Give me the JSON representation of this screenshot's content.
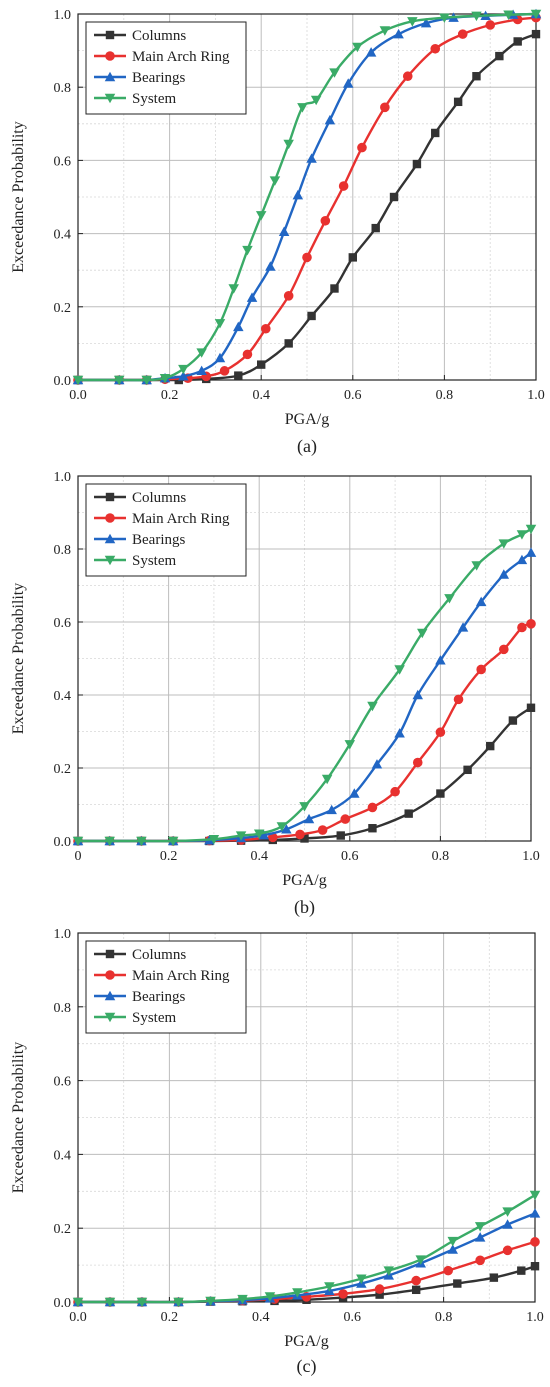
{
  "chart_data": [
    {
      "type": "line",
      "caption": "(a)",
      "xlabel": "PGA/g",
      "ylabel": "Exceedance Probability",
      "xlim": [
        0,
        1
      ],
      "ylim": [
        0,
        1
      ],
      "xticks": [
        "0.0",
        "0.2",
        "0.4",
        "0.6",
        "0.8",
        "1.0"
      ],
      "yticks": [
        "0.0",
        "0.2",
        "0.4",
        "0.6",
        "0.8",
        "1.0"
      ],
      "grid": true,
      "legend_position": "top-left",
      "series": [
        {
          "name": "Columns",
          "color": "#333333",
          "marker": "square",
          "x": [
            0,
            0.09,
            0.15,
            0.22,
            0.28,
            0.35,
            0.4,
            0.46,
            0.51,
            0.56,
            0.6,
            0.65,
            0.69,
            0.74,
            0.78,
            0.83,
            0.87,
            0.92,
            0.96,
            1.0
          ],
          "y": [
            0,
            0,
            0,
            0,
            0.003,
            0.012,
            0.042,
            0.1,
            0.175,
            0.25,
            0.335,
            0.415,
            0.5,
            0.59,
            0.675,
            0.76,
            0.83,
            0.885,
            0.925,
            0.945
          ]
        },
        {
          "name": "Main Arch Ring",
          "color": "#e8312f",
          "marker": "circle",
          "x": [
            0,
            0.09,
            0.15,
            0.19,
            0.24,
            0.28,
            0.32,
            0.37,
            0.41,
            0.46,
            0.5,
            0.54,
            0.58,
            0.62,
            0.67,
            0.72,
            0.78,
            0.84,
            0.9,
            0.96,
            1.0
          ],
          "y": [
            0,
            0,
            0,
            0.002,
            0.005,
            0.01,
            0.025,
            0.07,
            0.14,
            0.23,
            0.335,
            0.435,
            0.53,
            0.635,
            0.745,
            0.83,
            0.905,
            0.945,
            0.97,
            0.985,
            0.99
          ]
        },
        {
          "name": "Bearings",
          "color": "#2166c4",
          "marker": "triangle-up",
          "x": [
            0,
            0.09,
            0.15,
            0.19,
            0.23,
            0.27,
            0.31,
            0.35,
            0.38,
            0.42,
            0.45,
            0.48,
            0.51,
            0.55,
            0.59,
            0.64,
            0.7,
            0.76,
            0.82,
            0.89,
            0.95,
            1.0
          ],
          "y": [
            0,
            0,
            0,
            0.005,
            0.01,
            0.025,
            0.06,
            0.145,
            0.225,
            0.31,
            0.405,
            0.505,
            0.605,
            0.71,
            0.81,
            0.895,
            0.945,
            0.975,
            0.99,
            0.995,
            0.998,
            1.0
          ]
        },
        {
          "name": "System",
          "color": "#3aab67",
          "marker": "triangle-down",
          "x": [
            0,
            0.09,
            0.15,
            0.19,
            0.23,
            0.27,
            0.31,
            0.34,
            0.37,
            0.4,
            0.43,
            0.46,
            0.49,
            0.52,
            0.56,
            0.61,
            0.67,
            0.73,
            0.8,
            0.87,
            0.94,
            1.0
          ],
          "y": [
            0,
            0,
            0,
            0.005,
            0.03,
            0.075,
            0.155,
            0.25,
            0.355,
            0.45,
            0.545,
            0.645,
            0.745,
            0.765,
            0.84,
            0.91,
            0.955,
            0.98,
            0.99,
            0.995,
            0.998,
            1.0
          ]
        }
      ]
    },
    {
      "type": "line",
      "caption": "(b)",
      "xlabel": "PGA/g",
      "ylabel": "Exceedance Probability",
      "xlim": [
        0,
        1
      ],
      "ylim": [
        0,
        1
      ],
      "xticks": [
        "0",
        "0.2",
        "0.4",
        "0.6",
        "0.8",
        "1.0"
      ],
      "yticks": [
        "0.0",
        "0.2",
        "0.4",
        "0.6",
        "0.8",
        "1.0"
      ],
      "grid": true,
      "legend_position": "top-left",
      "series": [
        {
          "name": "Columns",
          "color": "#333333",
          "marker": "square",
          "x": [
            0,
            0.07,
            0.14,
            0.21,
            0.29,
            0.36,
            0.43,
            0.5,
            0.58,
            0.65,
            0.73,
            0.8,
            0.86,
            0.91,
            0.96,
            1.0
          ],
          "y": [
            0,
            0,
            0,
            0,
            0,
            0.001,
            0.003,
            0.007,
            0.015,
            0.035,
            0.075,
            0.13,
            0.195,
            0.26,
            0.33,
            0.365
          ]
        },
        {
          "name": "Main Arch Ring",
          "color": "#e8312f",
          "marker": "circle",
          "x": [
            0,
            0.07,
            0.14,
            0.21,
            0.29,
            0.36,
            0.43,
            0.49,
            0.54,
            0.59,
            0.65,
            0.7,
            0.75,
            0.8,
            0.84,
            0.89,
            0.94,
            0.98,
            1.0
          ],
          "y": [
            0,
            0,
            0,
            0,
            0.001,
            0.003,
            0.01,
            0.018,
            0.03,
            0.06,
            0.092,
            0.135,
            0.215,
            0.298,
            0.388,
            0.47,
            0.525,
            0.585,
            0.595
          ]
        },
        {
          "name": "Bearings",
          "color": "#2166c4",
          "marker": "triangle-up",
          "x": [
            0,
            0.07,
            0.14,
            0.21,
            0.29,
            0.36,
            0.41,
            0.46,
            0.51,
            0.56,
            0.61,
            0.66,
            0.71,
            0.75,
            0.8,
            0.85,
            0.89,
            0.94,
            0.98,
            1.0
          ],
          "y": [
            0,
            0,
            0,
            0,
            0.002,
            0.008,
            0.016,
            0.032,
            0.06,
            0.085,
            0.13,
            0.21,
            0.295,
            0.4,
            0.495,
            0.585,
            0.655,
            0.73,
            0.77,
            0.79
          ]
        },
        {
          "name": "System",
          "color": "#3aab67",
          "marker": "triangle-down",
          "x": [
            0,
            0.07,
            0.14,
            0.21,
            0.3,
            0.36,
            0.4,
            0.45,
            0.5,
            0.55,
            0.6,
            0.65,
            0.71,
            0.76,
            0.82,
            0.88,
            0.94,
            0.98,
            1.0
          ],
          "y": [
            0,
            0,
            0,
            0,
            0.005,
            0.015,
            0.02,
            0.04,
            0.095,
            0.17,
            0.265,
            0.37,
            0.47,
            0.57,
            0.665,
            0.755,
            0.815,
            0.84,
            0.855
          ]
        }
      ]
    },
    {
      "type": "line",
      "caption": "(c)",
      "xlabel": "PGA/g",
      "ylabel": "Exceedance Probability",
      "xlim": [
        0,
        1
      ],
      "ylim": [
        0,
        1
      ],
      "xticks": [
        "0.0",
        "0.2",
        "0.4",
        "0.6",
        "0.8",
        "1.0"
      ],
      "yticks": [
        "0.0",
        "0.2",
        "0.4",
        "0.6",
        "0.8",
        "1.0"
      ],
      "grid": true,
      "legend_position": "top-left",
      "series": [
        {
          "name": "Columns",
          "color": "#333333",
          "marker": "square",
          "x": [
            0,
            0.07,
            0.14,
            0.22,
            0.29,
            0.36,
            0.43,
            0.5,
            0.58,
            0.66,
            0.74,
            0.83,
            0.91,
            0.97,
            1.0
          ],
          "y": [
            0,
            0,
            0,
            0,
            0.001,
            0.002,
            0.003,
            0.006,
            0.012,
            0.02,
            0.033,
            0.05,
            0.066,
            0.085,
            0.097
          ]
        },
        {
          "name": "Main Arch Ring",
          "color": "#e8312f",
          "marker": "circle",
          "x": [
            0,
            0.07,
            0.14,
            0.22,
            0.29,
            0.36,
            0.43,
            0.5,
            0.58,
            0.66,
            0.74,
            0.81,
            0.88,
            0.94,
            1.0
          ],
          "y": [
            0,
            0,
            0,
            0,
            0.002,
            0.004,
            0.008,
            0.014,
            0.022,
            0.035,
            0.058,
            0.085,
            0.113,
            0.14,
            0.163
          ]
        },
        {
          "name": "Bearings",
          "color": "#2166c4",
          "marker": "triangle-up",
          "x": [
            0,
            0.07,
            0.14,
            0.22,
            0.29,
            0.36,
            0.42,
            0.48,
            0.55,
            0.62,
            0.68,
            0.75,
            0.82,
            0.88,
            0.94,
            1.0
          ],
          "y": [
            0,
            0,
            0,
            0,
            0.002,
            0.005,
            0.01,
            0.018,
            0.03,
            0.05,
            0.072,
            0.105,
            0.142,
            0.175,
            0.21,
            0.24
          ]
        },
        {
          "name": "System",
          "color": "#3aab67",
          "marker": "triangle-down",
          "x": [
            0,
            0.07,
            0.14,
            0.22,
            0.29,
            0.36,
            0.42,
            0.48,
            0.55,
            0.62,
            0.68,
            0.75,
            0.82,
            0.88,
            0.94,
            1.0
          ],
          "y": [
            0,
            0,
            0,
            0,
            0.003,
            0.008,
            0.015,
            0.026,
            0.042,
            0.063,
            0.085,
            0.115,
            0.165,
            0.205,
            0.245,
            0.29
          ]
        }
      ]
    }
  ]
}
